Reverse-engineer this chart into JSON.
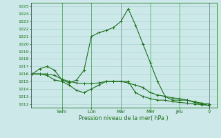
{
  "xlabel": "Pression niveau de la mer( hPa )",
  "bg_color": "#cce8e8",
  "grid_color": "#aad4d4",
  "line_color": "#1a6e1a",
  "ylim": [
    1011.5,
    1025.5
  ],
  "yticks": [
    1012,
    1013,
    1014,
    1015,
    1016,
    1017,
    1018,
    1019,
    1020,
    1021,
    1022,
    1023,
    1024,
    1025
  ],
  "day_labels": [
    "Sam",
    "Lun",
    "Mar",
    "Mer",
    "Jeu",
    "V"
  ],
  "day_positions": [
    2.0,
    4.0,
    6.0,
    8.0,
    10.0,
    12.0
  ],
  "s1_x": [
    0,
    0.5,
    1.0,
    1.5,
    2.0,
    2.5,
    3.0,
    3.5,
    4.0,
    4.5,
    5.0,
    5.5,
    6.0,
    6.5,
    7.0,
    7.5,
    8.0,
    8.5,
    9.0,
    9.5,
    10.0,
    10.5,
    11.0,
    11.5,
    12.0
  ],
  "s1_y": [
    1016.0,
    1016.7,
    1017.0,
    1016.5,
    1015.2,
    1014.8,
    1015.2,
    1016.5,
    1021.0,
    1021.5,
    1021.8,
    1022.2,
    1023.0,
    1024.7,
    1022.5,
    1020.0,
    1017.5,
    1015.0,
    1013.0,
    1012.5,
    1012.5,
    1012.5,
    1012.2,
    1012.0,
    1011.8
  ],
  "s2_x": [
    0,
    0.5,
    1.0,
    1.5,
    2.0,
    2.5,
    3.0,
    3.5,
    4.0,
    4.5,
    5.0,
    5.5,
    6.0,
    6.5,
    7.0,
    7.5,
    8.0,
    8.5,
    9.0,
    9.5,
    10.0,
    10.5,
    11.0,
    11.5,
    12.0
  ],
  "s2_y": [
    1016.0,
    1016.0,
    1016.0,
    1015.8,
    1015.3,
    1015.0,
    1014.8,
    1014.7,
    1014.7,
    1014.8,
    1015.0,
    1015.0,
    1015.0,
    1014.8,
    1014.5,
    1014.2,
    1013.5,
    1013.2,
    1013.0,
    1012.8,
    1012.7,
    1012.5,
    1012.3,
    1012.1,
    1012.0
  ],
  "s3_x": [
    0,
    0.5,
    1.0,
    1.5,
    2.0,
    2.5,
    3.0,
    3.5,
    4.0,
    4.5,
    5.0,
    5.5,
    6.0,
    6.5,
    7.0,
    7.5,
    8.0,
    8.5,
    9.0,
    9.5,
    10.0,
    10.5,
    11.0,
    11.5,
    12.0
  ],
  "s3_y": [
    1016.0,
    1016.0,
    1015.8,
    1015.2,
    1015.0,
    1014.5,
    1013.8,
    1013.5,
    1014.0,
    1014.5,
    1015.0,
    1015.0,
    1015.0,
    1015.0,
    1013.5,
    1013.0,
    1012.7,
    1012.5,
    1012.5,
    1012.3,
    1012.2,
    1012.1,
    1012.0,
    1011.9,
    1011.8
  ],
  "xmin": -0.1,
  "xmax": 12.5
}
